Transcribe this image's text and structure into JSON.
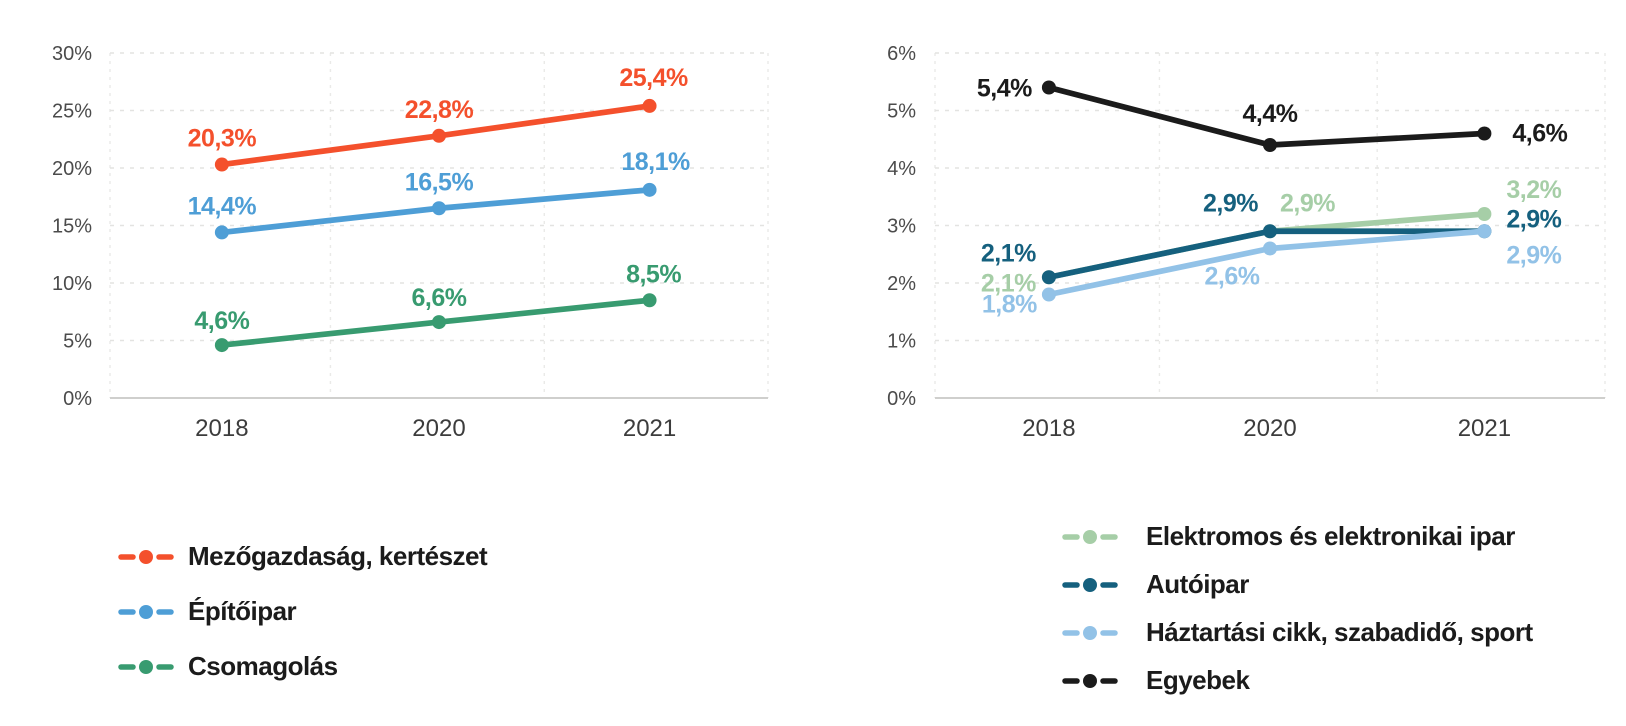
{
  "page": {
    "background": "#ffffff",
    "axis_tick_color": "#4b4b4b",
    "axis_year_color": "#3c3c3c",
    "gridline_color": "#e3e3e1",
    "axis_line_color": "#cfcfcd",
    "legend_text_color": "#1b1b1b"
  },
  "chart_data": [
    {
      "type": "line",
      "title": "",
      "xlabel": "",
      "ylabel": "",
      "categories": [
        "2018",
        "2020",
        "2021"
      ],
      "ylim": [
        0,
        30
      ],
      "y_tick_labels": [
        "0%",
        "5%",
        "10%",
        "15%",
        "20%",
        "25%",
        "30%"
      ],
      "grid": true,
      "legend_position": "bottom-left",
      "series": [
        {
          "name": "Mezőgazdaság, kertészet",
          "color": "#F4502C",
          "values": [
            20.3,
            22.8,
            25.4
          ],
          "point_labels": [
            "20,3%",
            "22,8%",
            "25,4%"
          ]
        },
        {
          "name": "Építőipar",
          "color": "#4E9ED6",
          "values": [
            14.4,
            16.5,
            18.1
          ],
          "point_labels": [
            "14,4%",
            "16,5%",
            "18,1%"
          ]
        },
        {
          "name": "Csomagolás",
          "color": "#389B70",
          "values": [
            4.6,
            6.6,
            8.5
          ],
          "point_labels": [
            "4,6%",
            "6,6%",
            "8,5%"
          ]
        }
      ]
    },
    {
      "type": "line",
      "title": "",
      "xlabel": "",
      "ylabel": "",
      "categories": [
        "2018",
        "2020",
        "2021"
      ],
      "ylim": [
        0,
        6
      ],
      "y_tick_labels": [
        "0%",
        "1%",
        "2%",
        "3%",
        "4%",
        "5%",
        "6%"
      ],
      "grid": true,
      "legend_position": "bottom-left",
      "series": [
        {
          "name": "Elektromos és elektronikai ipar",
          "color": "#A6CEA7",
          "values": [
            2.1,
            2.9,
            3.2
          ],
          "point_labels": [
            "2,1%",
            "2,9%",
            "3,2%"
          ]
        },
        {
          "name": "Autóipar",
          "color": "#15607E",
          "values": [
            2.1,
            2.9,
            2.9
          ],
          "point_labels": [
            "2,1%",
            "2,9%",
            "2,9%"
          ]
        },
        {
          "name": "Háztartási cikk, szabadidő, sport",
          "color": "#92C2E7",
          "values": [
            1.8,
            2.6,
            2.9
          ],
          "point_labels": [
            "1,8%",
            "2,6%",
            "2,9%"
          ]
        },
        {
          "name": "Egyebek",
          "color": "#1B1B1B",
          "values": [
            5.4,
            4.4,
            4.6
          ],
          "point_labels": [
            "5,4%",
            "4,4%",
            "4,6%"
          ]
        }
      ]
    }
  ]
}
